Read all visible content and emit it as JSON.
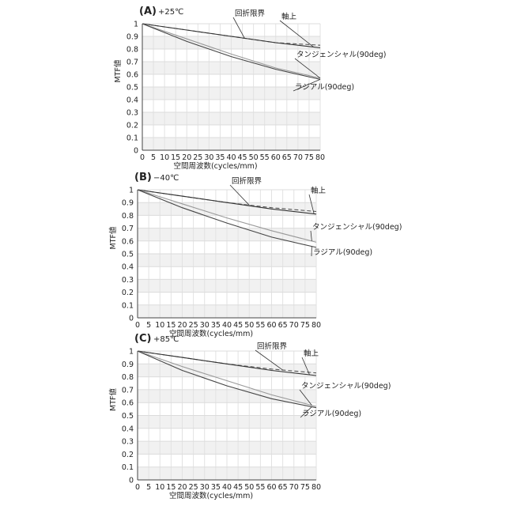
{
  "chart_data": [
    {
      "type": "line",
      "panel_label": "(A)",
      "temperature": "+25℃",
      "xlabel": "空間周波数(cycles/mm)",
      "ylabel": "MTF値",
      "xlim": [
        0,
        80
      ],
      "ylim": [
        0,
        1
      ],
      "x_ticks": [
        "0",
        "5",
        "10",
        "15",
        "20",
        "25",
        "30",
        "35",
        "40",
        "45",
        "50",
        "55",
        "60",
        "65",
        "70",
        "75",
        "80"
      ],
      "y_ticks": [
        "0",
        "0.1",
        "0.2",
        "0.3",
        "0.4",
        "0.5",
        "0.6",
        "0.7",
        "0.8",
        "0.9",
        "1"
      ],
      "grid": true,
      "series": [
        {
          "name": "回折限界",
          "color": "#555555",
          "dash": "5,3",
          "x": [
            0,
            20,
            40,
            60,
            80
          ],
          "y": [
            1.0,
            0.95,
            0.9,
            0.85,
            0.83
          ]
        },
        {
          "name": "軸上",
          "color": "#333333",
          "dash": "",
          "x": [
            0,
            20,
            40,
            60,
            80
          ],
          "y": [
            1.0,
            0.95,
            0.9,
            0.85,
            0.81
          ]
        },
        {
          "name": "タンジェンシャル(90deg)",
          "color": "#999999",
          "dash": "",
          "x": [
            0,
            20,
            40,
            60,
            80
          ],
          "y": [
            1.0,
            0.88,
            0.76,
            0.65,
            0.57
          ]
        },
        {
          "name": "ラジアル(90deg)",
          "color": "#444444",
          "dash": "",
          "x": [
            0,
            20,
            40,
            60,
            80
          ],
          "y": [
            1.0,
            0.86,
            0.74,
            0.64,
            0.56
          ]
        }
      ],
      "annotations": [
        {
          "text": "回折限界",
          "series": 0
        },
        {
          "text": "軸上",
          "series": 1
        },
        {
          "text": "タンジェンシャル(90deg)",
          "series": 2
        },
        {
          "text": "ラジアル(90deg)",
          "series": 3
        }
      ]
    },
    {
      "type": "line",
      "panel_label": "(B)",
      "temperature": "−40℃",
      "xlabel": "空間周波数(cycles/mm)",
      "ylabel": "MTF値",
      "xlim": [
        0,
        80
      ],
      "ylim": [
        0,
        1
      ],
      "x_ticks": [
        "0",
        "5",
        "10",
        "15",
        "20",
        "25",
        "30",
        "35",
        "40",
        "45",
        "50",
        "55",
        "60",
        "65",
        "70",
        "75",
        "80"
      ],
      "y_ticks": [
        "0",
        "0.1",
        "0.2",
        "0.3",
        "0.4",
        "0.5",
        "0.6",
        "0.7",
        "0.8",
        "0.9",
        "1"
      ],
      "grid": true,
      "series": [
        {
          "name": "回折限界",
          "color": "#555555",
          "dash": "5,3",
          "x": [
            0,
            20,
            40,
            60,
            80
          ],
          "y": [
            1.0,
            0.95,
            0.9,
            0.86,
            0.83
          ]
        },
        {
          "name": "軸上",
          "color": "#333333",
          "dash": "",
          "x": [
            0,
            20,
            40,
            60,
            80
          ],
          "y": [
            1.0,
            0.95,
            0.9,
            0.85,
            0.81
          ]
        },
        {
          "name": "タンジェンシャル(90deg)",
          "color": "#999999",
          "dash": "",
          "x": [
            0,
            20,
            40,
            60,
            80
          ],
          "y": [
            1.0,
            0.89,
            0.78,
            0.68,
            0.59
          ]
        },
        {
          "name": "ラジアル(90deg)",
          "color": "#444444",
          "dash": "",
          "x": [
            0,
            20,
            40,
            60,
            80
          ],
          "y": [
            1.0,
            0.86,
            0.74,
            0.63,
            0.55
          ]
        }
      ],
      "annotations": [
        {
          "text": "回折限界",
          "series": 0
        },
        {
          "text": "軸上",
          "series": 1
        },
        {
          "text": "タンジェンシャル(90deg)",
          "series": 2
        },
        {
          "text": "ラジアル(90deg)",
          "series": 3
        }
      ]
    },
    {
      "type": "line",
      "panel_label": "(C)",
      "temperature": "+85℃",
      "xlabel": "空間周波数(cycles/mm)",
      "ylabel": "MTF値",
      "xlim": [
        0,
        80
      ],
      "ylim": [
        0,
        1
      ],
      "x_ticks": [
        "0",
        "5",
        "10",
        "15",
        "20",
        "25",
        "30",
        "35",
        "40",
        "45",
        "50",
        "55",
        "60",
        "65",
        "70",
        "75",
        "80"
      ],
      "y_ticks": [
        "0",
        "0.1",
        "0.2",
        "0.3",
        "0.4",
        "0.5",
        "0.6",
        "0.7",
        "0.8",
        "0.9",
        "1"
      ],
      "grid": true,
      "series": [
        {
          "name": "回折限界",
          "color": "#555555",
          "dash": "5,3",
          "x": [
            0,
            20,
            40,
            60,
            80
          ],
          "y": [
            1.0,
            0.95,
            0.9,
            0.86,
            0.83
          ]
        },
        {
          "name": "軸上",
          "color": "#333333",
          "dash": "",
          "x": [
            0,
            20,
            40,
            60,
            80
          ],
          "y": [
            1.0,
            0.95,
            0.9,
            0.85,
            0.81
          ]
        },
        {
          "name": "タンジェンシャル(90deg)",
          "color": "#999999",
          "dash": "",
          "x": [
            0,
            20,
            40,
            60,
            80
          ],
          "y": [
            1.0,
            0.88,
            0.77,
            0.66,
            0.57
          ]
        },
        {
          "name": "ラジアル(90deg)",
          "color": "#444444",
          "dash": "",
          "x": [
            0,
            20,
            40,
            60,
            80
          ],
          "y": [
            1.0,
            0.85,
            0.73,
            0.63,
            0.56
          ]
        }
      ],
      "annotations": [
        {
          "text": "回折限界",
          "series": 0
        },
        {
          "text": "軸上",
          "series": 1
        },
        {
          "text": "タンジェンシャル(90deg)",
          "series": 2
        },
        {
          "text": "ラジアル(90deg)",
          "series": 3
        }
      ]
    }
  ]
}
